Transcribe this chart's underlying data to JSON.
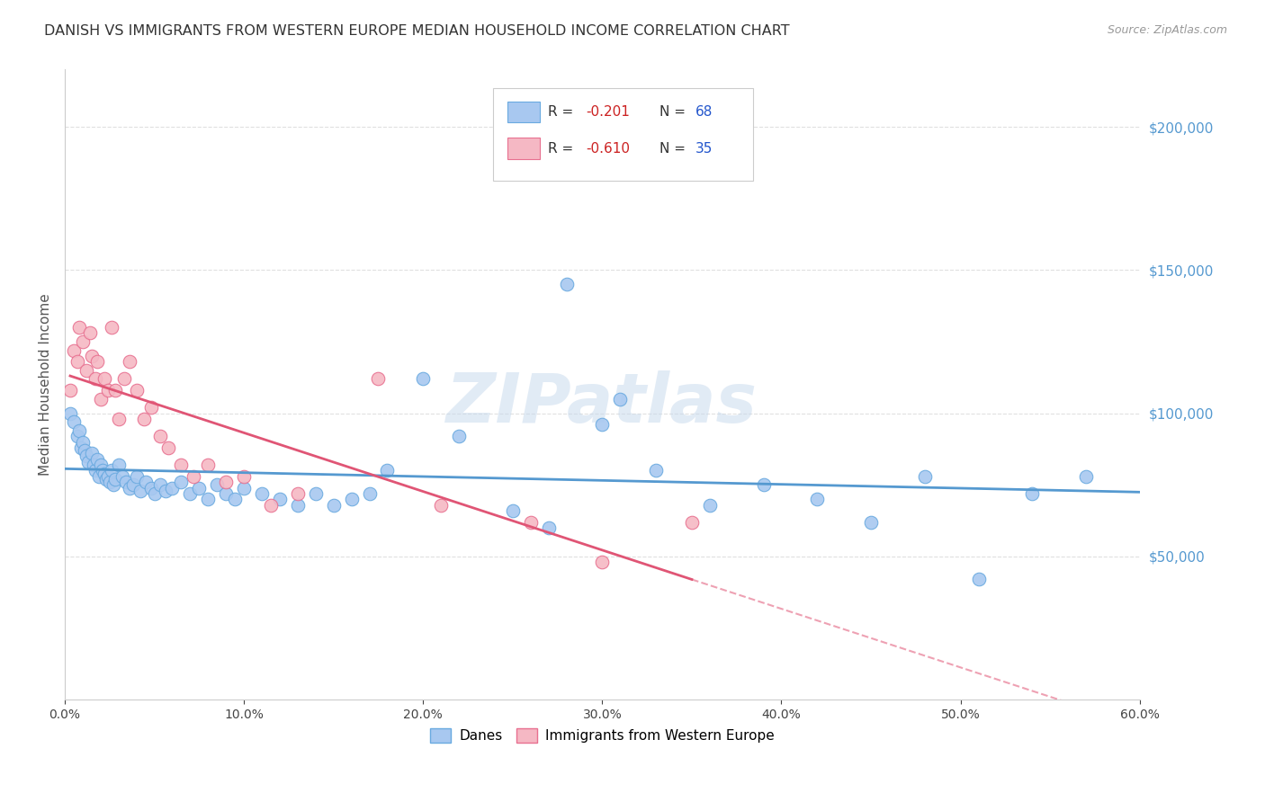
{
  "title": "DANISH VS IMMIGRANTS FROM WESTERN EUROPE MEDIAN HOUSEHOLD INCOME CORRELATION CHART",
  "source": "Source: ZipAtlas.com",
  "ylabel": "Median Household Income",
  "xlim": [
    0.0,
    0.6
  ],
  "ylim": [
    0,
    220000
  ],
  "xticks": [
    0.0,
    0.1,
    0.2,
    0.3,
    0.4,
    0.5,
    0.6
  ],
  "yticks_right": [
    50000,
    100000,
    150000,
    200000
  ],
  "danes_color": "#a8c8f0",
  "immigrants_color": "#f5b8c4",
  "danes_edge_color": "#6aaae0",
  "immigrants_edge_color": "#e87090",
  "danes_line_color": "#5599d0",
  "immigrants_line_color": "#e05575",
  "legend_R_color": "#cc2222",
  "legend_N_color": "#2255cc",
  "danes_R": -0.201,
  "danes_N": 68,
  "immigrants_R": -0.61,
  "immigrants_N": 35,
  "danes_x": [
    0.003,
    0.005,
    0.007,
    0.008,
    0.009,
    0.01,
    0.011,
    0.012,
    0.013,
    0.015,
    0.016,
    0.017,
    0.018,
    0.019,
    0.02,
    0.021,
    0.022,
    0.023,
    0.024,
    0.025,
    0.026,
    0.027,
    0.028,
    0.03,
    0.032,
    0.034,
    0.036,
    0.038,
    0.04,
    0.042,
    0.045,
    0.048,
    0.05,
    0.053,
    0.056,
    0.06,
    0.065,
    0.07,
    0.075,
    0.08,
    0.085,
    0.09,
    0.095,
    0.1,
    0.11,
    0.12,
    0.13,
    0.14,
    0.15,
    0.16,
    0.17,
    0.18,
    0.2,
    0.22,
    0.25,
    0.27,
    0.3,
    0.33,
    0.36,
    0.39,
    0.42,
    0.45,
    0.48,
    0.51,
    0.54,
    0.57,
    0.28,
    0.31
  ],
  "danes_y": [
    100000,
    97000,
    92000,
    94000,
    88000,
    90000,
    87000,
    85000,
    83000,
    86000,
    82000,
    80000,
    84000,
    78000,
    82000,
    80000,
    79000,
    77000,
    78000,
    76000,
    80000,
    75000,
    77000,
    82000,
    78000,
    76000,
    74000,
    75000,
    78000,
    73000,
    76000,
    74000,
    72000,
    75000,
    73000,
    74000,
    76000,
    72000,
    74000,
    70000,
    75000,
    72000,
    70000,
    74000,
    72000,
    70000,
    68000,
    72000,
    68000,
    70000,
    72000,
    80000,
    112000,
    92000,
    66000,
    60000,
    96000,
    80000,
    68000,
    75000,
    70000,
    62000,
    78000,
    42000,
    72000,
    78000,
    145000,
    105000
  ],
  "immigrants_x": [
    0.003,
    0.005,
    0.007,
    0.008,
    0.01,
    0.012,
    0.014,
    0.015,
    0.017,
    0.018,
    0.02,
    0.022,
    0.024,
    0.026,
    0.028,
    0.03,
    0.033,
    0.036,
    0.04,
    0.044,
    0.048,
    0.053,
    0.058,
    0.065,
    0.072,
    0.08,
    0.09,
    0.1,
    0.115,
    0.13,
    0.175,
    0.21,
    0.26,
    0.3,
    0.35
  ],
  "immigrants_y": [
    108000,
    122000,
    118000,
    130000,
    125000,
    115000,
    128000,
    120000,
    112000,
    118000,
    105000,
    112000,
    108000,
    130000,
    108000,
    98000,
    112000,
    118000,
    108000,
    98000,
    102000,
    92000,
    88000,
    82000,
    78000,
    82000,
    76000,
    78000,
    68000,
    72000,
    112000,
    68000,
    62000,
    48000,
    62000
  ],
  "watermark_text": "ZIPatlas",
  "background_color": "#ffffff",
  "grid_color": "#e0e0e0"
}
